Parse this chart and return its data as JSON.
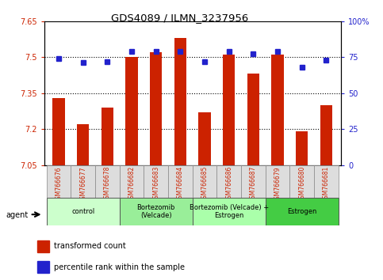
{
  "title": "GDS4089 / ILMN_3237956",
  "samples": [
    "GSM766676",
    "GSM766677",
    "GSM766678",
    "GSM766682",
    "GSM766683",
    "GSM766684",
    "GSM766685",
    "GSM766686",
    "GSM766687",
    "GSM766679",
    "GSM766680",
    "GSM766681"
  ],
  "red_values": [
    7.33,
    7.22,
    7.29,
    7.5,
    7.52,
    7.58,
    7.27,
    7.51,
    7.43,
    7.51,
    7.19,
    7.3
  ],
  "blue_values": [
    74,
    71,
    72,
    79,
    79,
    79,
    72,
    79,
    77,
    79,
    68,
    73
  ],
  "ylim_left": [
    7.05,
    7.65
  ],
  "ylim_right": [
    0,
    100
  ],
  "yticks_left": [
    7.05,
    7.2,
    7.35,
    7.5,
    7.65
  ],
  "ytick_labels_left": [
    "7.05",
    "7.2",
    "7.35",
    "7.5",
    "7.65"
  ],
  "yticks_right": [
    0,
    25,
    50,
    75,
    100
  ],
  "ytick_labels_right": [
    "0",
    "25",
    "50",
    "75",
    "100%"
  ],
  "hlines": [
    7.2,
    7.35,
    7.5
  ],
  "bar_color": "#cc2200",
  "dot_color": "#2222cc",
  "groups": [
    {
      "label": "control",
      "start": 0,
      "end": 3,
      "color": "#ccffcc"
    },
    {
      "label": "Bortezomib\n(Velcade)",
      "start": 3,
      "end": 6,
      "color": "#99ee99"
    },
    {
      "label": "Bortezomib (Velcade) +\nEstrogen",
      "start": 6,
      "end": 9,
      "color": "#aaffaa"
    },
    {
      "label": "Estrogen",
      "start": 9,
      "end": 12,
      "color": "#44cc44"
    }
  ],
  "legend_items": [
    {
      "label": "transformed count",
      "color": "#cc2200"
    },
    {
      "label": "percentile rank within the sample",
      "color": "#2222cc"
    }
  ],
  "agent_label": "agent",
  "bar_width": 0.5,
  "base_value": 7.05
}
